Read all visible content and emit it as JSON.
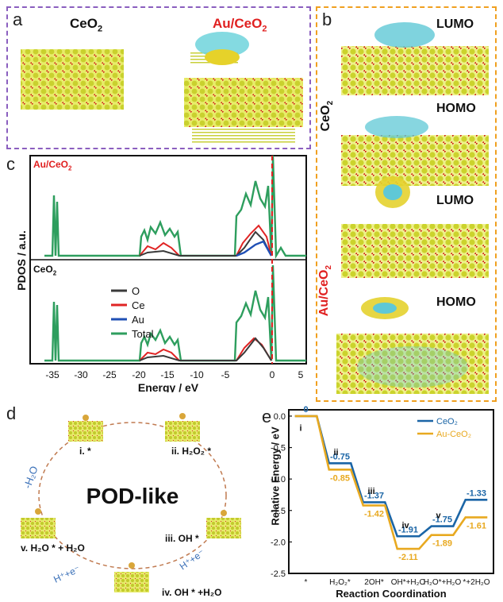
{
  "panel_a": {
    "label": "a",
    "left_title": "CeO",
    "left_sub": "2",
    "right_title": "Au/CeO",
    "right_sub": "2"
  },
  "panel_b": {
    "label": "b",
    "ceo2_label": "CeO",
    "ceo2_sub": "2",
    "auceo2_label": "Au/CeO",
    "auceo2_sub": "2",
    "orbitals": [
      "LUMO",
      "HOMO",
      "LUMO",
      "HOMO"
    ]
  },
  "panel_c": {
    "label": "c",
    "top_title": "Au/CeO",
    "top_sub": "2",
    "bottom_title": "CeO",
    "bottom_sub": "2",
    "ylabel": "PDOS / a.u.",
    "xlabel": "Energy / eV",
    "xticks": [
      "-35",
      "-30",
      "-25",
      "-20",
      "-15",
      "-10",
      "-5",
      "0",
      "5"
    ],
    "legend": [
      {
        "name": "O",
        "color": "#3a3a3a"
      },
      {
        "name": "Ce",
        "color": "#e02424"
      },
      {
        "name": "Au",
        "color": "#1f4fb5"
      },
      {
        "name": "Total",
        "color": "#2e9e5e"
      }
    ]
  },
  "panel_d": {
    "label": "d",
    "center": "POD-like",
    "steps": [
      "i. *",
      "ii. H₂O₂ *",
      "iii. OH *",
      "iv. OH * +H₂O",
      "v. H₂O * + H₂O"
    ],
    "edge_minus_h2o": "-H₂O",
    "edge_h_e_1": "H⁺+e⁻",
    "edge_h_e_2": "H⁺+e⁻"
  },
  "chart_data": {
    "type": "line",
    "label": "e",
    "xlabel": "Reaction Coordination",
    "ylabel": "Relative Energy / eV",
    "categories": [
      "*",
      "H₂O₂*",
      "2OH*",
      "OH*+H₂O",
      "H₂O*+H₂O",
      "*+2H₂O"
    ],
    "step_labels": [
      "i",
      "ii",
      "iii",
      "iv",
      "v"
    ],
    "ylim": [
      -2.5,
      0.1
    ],
    "yticks": [
      "0.0",
      "-0.5",
      "-1.0",
      "-1.5",
      "-2.0",
      "-2.5"
    ],
    "legend_placement": "top-right",
    "series": [
      {
        "name": "CeO₂",
        "color": "#1b65a6",
        "values": [
          0,
          -0.75,
          -1.37,
          -1.91,
          -1.75,
          -1.33
        ],
        "labels": [
          "0",
          "-0.75",
          "-1.37",
          "-1.91",
          "-1.75",
          "-1.33"
        ]
      },
      {
        "name": "Au-CeO₂",
        "color": "#e8a920",
        "values": [
          0,
          -0.85,
          -1.42,
          -2.11,
          -1.89,
          -1.61
        ],
        "labels": [
          "",
          "-0.85",
          "-1.42",
          "-2.11",
          "-1.89",
          "-1.61"
        ]
      }
    ]
  }
}
